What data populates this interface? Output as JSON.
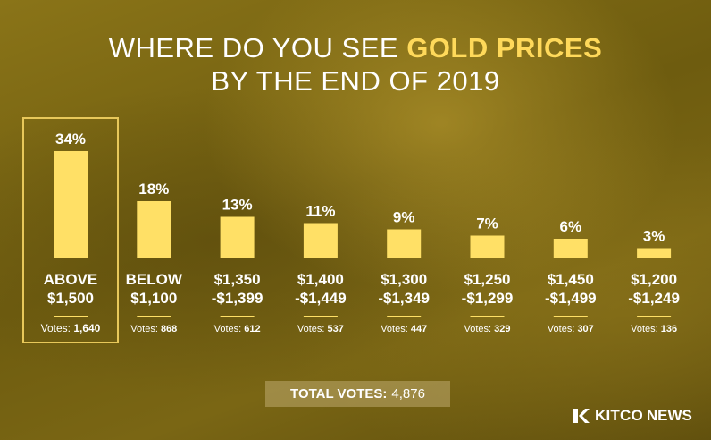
{
  "title": {
    "prefix": "WHERE DO YOU SEE",
    "highlight": "GOLD PRICES",
    "line2": "BY THE END OF 2019"
  },
  "colors": {
    "bar": "#ffe066",
    "highlight": "#ffd95a",
    "text": "#ffffff"
  },
  "chart_data": {
    "type": "bar",
    "title": "WHERE DO YOU SEE GOLD PRICES BY THE END OF 2019",
    "xlabel": "",
    "ylabel": "",
    "ylim": [
      0,
      34
    ],
    "grid": false,
    "categories": [
      [
        "ABOVE",
        "$1,500"
      ],
      [
        "BELOW",
        "$1,100"
      ],
      [
        "$1,350",
        "-$1,399"
      ],
      [
        "$1,400",
        "-$1,449"
      ],
      [
        "$1,300",
        "-$1,349"
      ],
      [
        "$1,250",
        "-$1,299"
      ],
      [
        "$1,450",
        "-$1,499"
      ],
      [
        "$1,200",
        "-$1,249"
      ]
    ],
    "values": [
      34,
      18,
      13,
      11,
      9,
      7,
      6,
      3
    ],
    "value_labels": [
      "34%",
      "18%",
      "13%",
      "11%",
      "9%",
      "7%",
      "6%",
      "3%"
    ],
    "votes_label": "Votes:",
    "votes": [
      "1,640",
      "868",
      "612",
      "537",
      "447",
      "329",
      "307",
      "136"
    ],
    "highlighted_category": "ABOVE $1,500"
  },
  "total": {
    "label": "TOTAL VOTES:",
    "value": "4,876"
  },
  "logo": {
    "brand": "KITCO",
    "suffix": "NEWS",
    "icon": "kitco-k-icon"
  }
}
